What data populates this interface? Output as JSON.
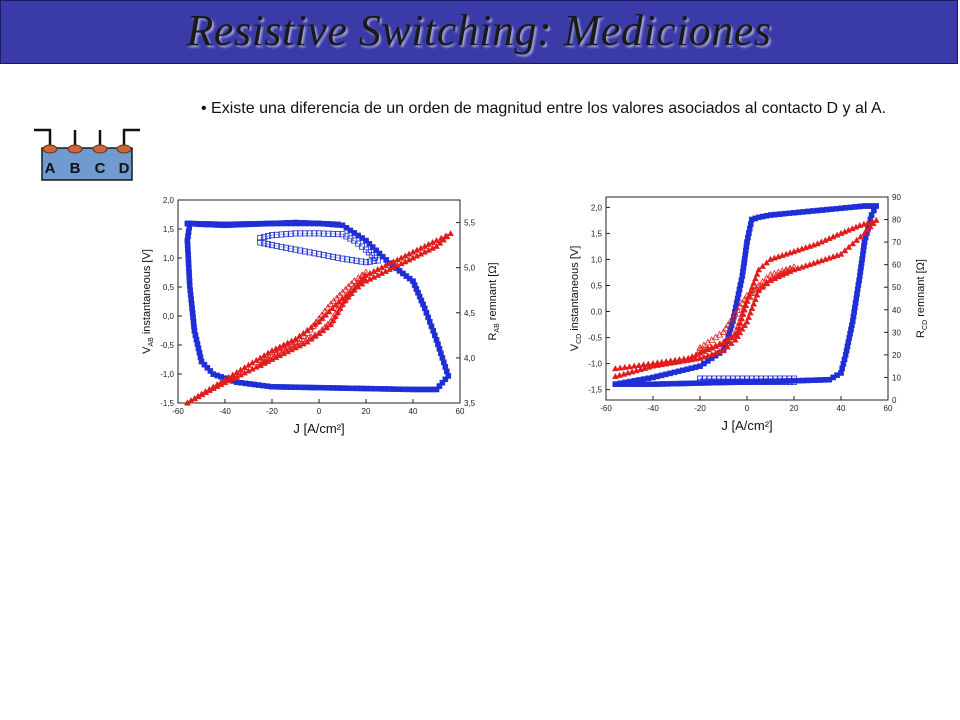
{
  "page": {
    "title": "Resistive Switching: Mediciones",
    "bullet": "• Existe una diferencia de un orden de magnitud entre los valores asociados al contacto D y al A."
  },
  "contact_diagram": {
    "labels": [
      "A",
      "B",
      "C",
      "D"
    ],
    "colors": {
      "body": "#6f9bd1",
      "pads": "#c8683a",
      "leads": "#111111"
    }
  },
  "chart_data": [
    {
      "type": "scatter",
      "id": "AB",
      "xlabel": "J [A/cm²]",
      "ylabel_left": {
        "main": "V",
        "sub": "AB",
        "rest": " instantaneous [V]"
      },
      "ylabel_right": {
        "main": "R",
        "sub": "AB",
        "rest": " remnant [Ω]"
      },
      "xlim": [
        -60,
        60
      ],
      "ylim_left": [
        -1.5,
        2.0
      ],
      "ylim_right": [
        3.5,
        5.75
      ],
      "x_ticks": [
        "-60",
        "-40",
        "-20",
        "0",
        "20",
        "40",
        "60"
      ],
      "y_left_ticks": [
        "-1,5",
        "-1,0",
        "-0,5",
        "0,0",
        "0,5",
        "1,0",
        "1,5",
        "2,0"
      ],
      "y_right_ticks": [
        "3,5",
        "4,0",
        "4,5",
        "5,0",
        "5,5"
      ],
      "series": [
        {
          "axis": "right",
          "color": "#1f2fd6",
          "marker": "square-filled",
          "x": [
            -56,
            -40,
            -20,
            0,
            10,
            20,
            30,
            40,
            45,
            50,
            55,
            50,
            40,
            20,
            0,
            -20,
            -35,
            -45,
            -50,
            -53,
            -55,
            -56,
            -55,
            -50,
            -40,
            -30,
            -20,
            -10,
            0,
            8
          ],
          "y": [
            5.49,
            5.48,
            5.49,
            5.49,
            5.47,
            5.3,
            5.05,
            4.85,
            4.55,
            4.2,
            3.8,
            3.65,
            3.65,
            3.66,
            3.67,
            3.68,
            3.73,
            3.82,
            3.96,
            4.3,
            4.8,
            5.3,
            5.49,
            5.48,
            5.47,
            5.48,
            5.49,
            5.5,
            5.49,
            5.48
          ]
        },
        {
          "axis": "right",
          "color": "#1f2fd6",
          "marker": "square-open",
          "x": [
            -25,
            -20,
            -10,
            0,
            10,
            15,
            20,
            25,
            20,
            10,
            0,
            -10,
            -20,
            -25
          ],
          "y": [
            5.33,
            5.36,
            5.38,
            5.38,
            5.37,
            5.3,
            5.2,
            5.08,
            5.06,
            5.1,
            5.15,
            5.2,
            5.25,
            5.28
          ]
        },
        {
          "axis": "left",
          "color": "#e01c1c",
          "marker": "triangle-filled",
          "x": [
            -56,
            -45,
            -35,
            -25,
            -15,
            -5,
            0,
            5,
            10,
            20,
            30,
            40,
            50,
            56,
            50,
            40,
            30,
            20,
            10,
            0,
            -10,
            -20,
            -30,
            -40,
            -50,
            -56
          ],
          "y": [
            -1.5,
            -1.25,
            -1.05,
            -0.85,
            -0.65,
            -0.45,
            -0.3,
            -0.15,
            0.2,
            0.7,
            0.9,
            1.1,
            1.3,
            1.42,
            1.2,
            1.0,
            0.8,
            0.6,
            0.3,
            -0.1,
            -0.4,
            -0.6,
            -0.85,
            -1.1,
            -1.35,
            -1.5
          ]
        },
        {
          "axis": "left",
          "color": "#e01c1c",
          "marker": "triangle-open",
          "x": [
            -25,
            -20,
            -15,
            -10,
            -5,
            0,
            5,
            10,
            15,
            20,
            15,
            10,
            5,
            0,
            -5,
            -10,
            -15,
            -20,
            -25
          ],
          "y": [
            -0.8,
            -0.7,
            -0.6,
            -0.5,
            -0.4,
            -0.3,
            -0.1,
            0.25,
            0.5,
            0.75,
            0.6,
            0.4,
            0.2,
            -0.05,
            -0.3,
            -0.45,
            -0.55,
            -0.7,
            -0.85
          ]
        }
      ]
    },
    {
      "type": "scatter",
      "id": "CD",
      "xlabel": "J [A/cm²]",
      "ylabel_left": {
        "main": "V",
        "sub": "CD",
        "rest": " instantaneous [V]"
      },
      "ylabel_right": {
        "main": "R",
        "sub": "CD",
        "rest": " remnant [Ω]"
      },
      "xlim": [
        -60,
        60
      ],
      "ylim_left": [
        -1.7,
        2.2
      ],
      "ylim_right": [
        0,
        90
      ],
      "x_ticks": [
        "-60",
        "-40",
        "-20",
        "0",
        "20",
        "40",
        "60"
      ],
      "y_left_ticks": [
        "-1,5",
        "-1,0",
        "-0,5",
        "0,0",
        "0,5",
        "1,0",
        "1,5",
        "2,0"
      ],
      "y_right_ticks": [
        "0",
        "10",
        "20",
        "30",
        "40",
        "50",
        "60",
        "70",
        "80",
        "90"
      ],
      "series": [
        {
          "axis": "right",
          "color": "#1f2fd6",
          "marker": "square-filled",
          "x": [
            -56,
            -40,
            -20,
            0,
            20,
            35,
            40,
            42,
            45,
            48,
            50,
            53,
            55,
            50,
            40,
            30,
            20,
            10,
            5,
            2,
            0,
            -2,
            -4,
            -6,
            -8,
            -10,
            -20,
            -40,
            -56
          ],
          "y": [
            7,
            7,
            7.5,
            8,
            8.5,
            9,
            12,
            20,
            35,
            55,
            70,
            82,
            86,
            86,
            85,
            84,
            83,
            82,
            81,
            80,
            70,
            55,
            45,
            35,
            28,
            22,
            15,
            10,
            7
          ]
        },
        {
          "axis": "right",
          "color": "#1f2fd6",
          "marker": "square-open",
          "x": [
            -20,
            -15,
            -10,
            -5,
            0,
            5,
            10,
            15,
            20,
            20,
            10,
            0,
            -10,
            -20
          ],
          "y": [
            8,
            8,
            8,
            8,
            8,
            8,
            8,
            8,
            8,
            9.5,
            9.5,
            9.5,
            9.5,
            9.5
          ]
        },
        {
          "axis": "left",
          "color": "#e01c1c",
          "marker": "triangle-filled",
          "x": [
            -56,
            -40,
            -25,
            -15,
            -8,
            -4,
            0,
            5,
            10,
            20,
            30,
            40,
            48,
            55,
            50,
            45,
            40,
            30,
            20,
            10,
            5,
            0,
            -5,
            -10,
            -20,
            -40,
            -56
          ],
          "y": [
            -1.1,
            -1.0,
            -0.9,
            -0.7,
            -0.55,
            -0.4,
            0.2,
            0.8,
            1.0,
            1.15,
            1.3,
            1.5,
            1.65,
            1.75,
            1.5,
            1.3,
            1.1,
            0.95,
            0.8,
            0.6,
            0.4,
            -0.2,
            -0.55,
            -0.75,
            -0.9,
            -1.05,
            -1.25
          ]
        },
        {
          "axis": "left",
          "color": "#e01c1c",
          "marker": "triangle-open",
          "x": [
            -20,
            -15,
            -10,
            -5,
            0,
            5,
            10,
            20,
            10,
            0,
            -10,
            -20
          ],
          "y": [
            -0.75,
            -0.7,
            -0.6,
            -0.45,
            0.2,
            0.5,
            0.7,
            0.85,
            0.6,
            0.3,
            -0.4,
            -0.7
          ]
        }
      ]
    }
  ]
}
